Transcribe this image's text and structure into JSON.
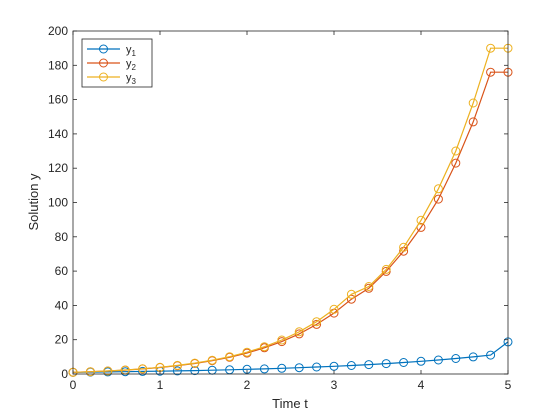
{
  "chart_data": {
    "type": "line",
    "xlabel": "Time t",
    "ylabel": "Solution y",
    "xlim": [
      0,
      5
    ],
    "ylim": [
      0,
      200
    ],
    "xticks": [
      "0",
      "1",
      "2",
      "3",
      "4",
      "5"
    ],
    "yticks": [
      "0",
      "20",
      "40",
      "60",
      "80",
      "100",
      "120",
      "140",
      "160",
      "180",
      "200"
    ],
    "grid": false,
    "legend_position": "top-left",
    "marker": "circle",
    "x": [
      0,
      0.2,
      0.4,
      0.6,
      0.8,
      1.0,
      1.2,
      1.4,
      1.6,
      1.8,
      2.0,
      2.2,
      2.4,
      2.6,
      2.8,
      3.0,
      3.2,
      3.4,
      3.6,
      3.8,
      4.0,
      4.2,
      4.4,
      4.6,
      4.8,
      5.0
    ],
    "series": [
      {
        "name": "y1",
        "label_base": "y",
        "label_sub": "1",
        "color": "#0072BD",
        "values": [
          1.0,
          1.11,
          1.22,
          1.35,
          1.49,
          1.65,
          1.82,
          2.01,
          2.23,
          2.46,
          2.72,
          3.0,
          3.32,
          3.67,
          4.06,
          4.48,
          4.95,
          5.47,
          6.05,
          6.69,
          7.39,
          8.17,
          9.03,
          9.97,
          11.02,
          18.7
        ]
      },
      {
        "name": "y2",
        "label_base": "y",
        "label_sub": "2",
        "color": "#D95319",
        "values": [
          1.0,
          1.34,
          1.76,
          2.3,
          2.96,
          3.8,
          4.85,
          6.15,
          7.76,
          9.75,
          12.2,
          15.3,
          18.9,
          23.4,
          28.9,
          35.5,
          43.6,
          50.0,
          59.8,
          71.6,
          85.5,
          102.0,
          123.0,
          147.0,
          176.0,
          176.0
        ]
      },
      {
        "name": "y3",
        "label_base": "y",
        "label_sub": "3",
        "color": "#EDB120",
        "values": [
          1.0,
          1.33,
          1.77,
          2.33,
          3.03,
          3.91,
          5.0,
          6.36,
          8.04,
          10.1,
          12.7,
          15.9,
          19.8,
          24.6,
          30.5,
          37.7,
          46.5,
          51.0,
          61.0,
          73.9,
          89.6,
          108.0,
          130.0,
          158.0,
          190.0,
          190.0
        ]
      }
    ]
  }
}
